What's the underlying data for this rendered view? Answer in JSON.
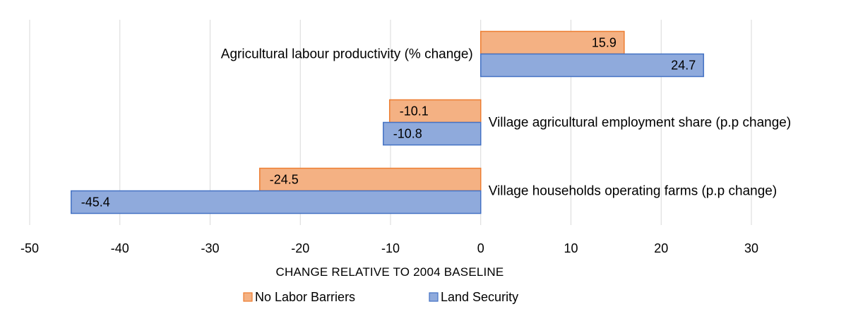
{
  "chart_data": {
    "type": "bar",
    "orientation": "horizontal",
    "categories": [
      "Agricultural labour productivity (% change)",
      "Village agricultural employment share (p.p change)",
      "Village households operating farms (p.p change)"
    ],
    "series": [
      {
        "name": "No Labor Barriers",
        "values": [
          15.9,
          -10.1,
          -24.5
        ],
        "color": "#f4b183",
        "stroke": "#ed7d31"
      },
      {
        "name": "Land Security",
        "values": [
          24.7,
          -10.8,
          -45.4
        ],
        "color": "#8faadc",
        "stroke": "#4472c4"
      }
    ],
    "xlabel": "CHANGE RELATIVE TO 2004 BASELINE",
    "xlim": [
      -50,
      30
    ],
    "xticks": [
      -50,
      -40,
      -30,
      -20,
      -10,
      0,
      10,
      20,
      30
    ],
    "grid": true,
    "legend_position": "bottom",
    "data_labels": true
  }
}
